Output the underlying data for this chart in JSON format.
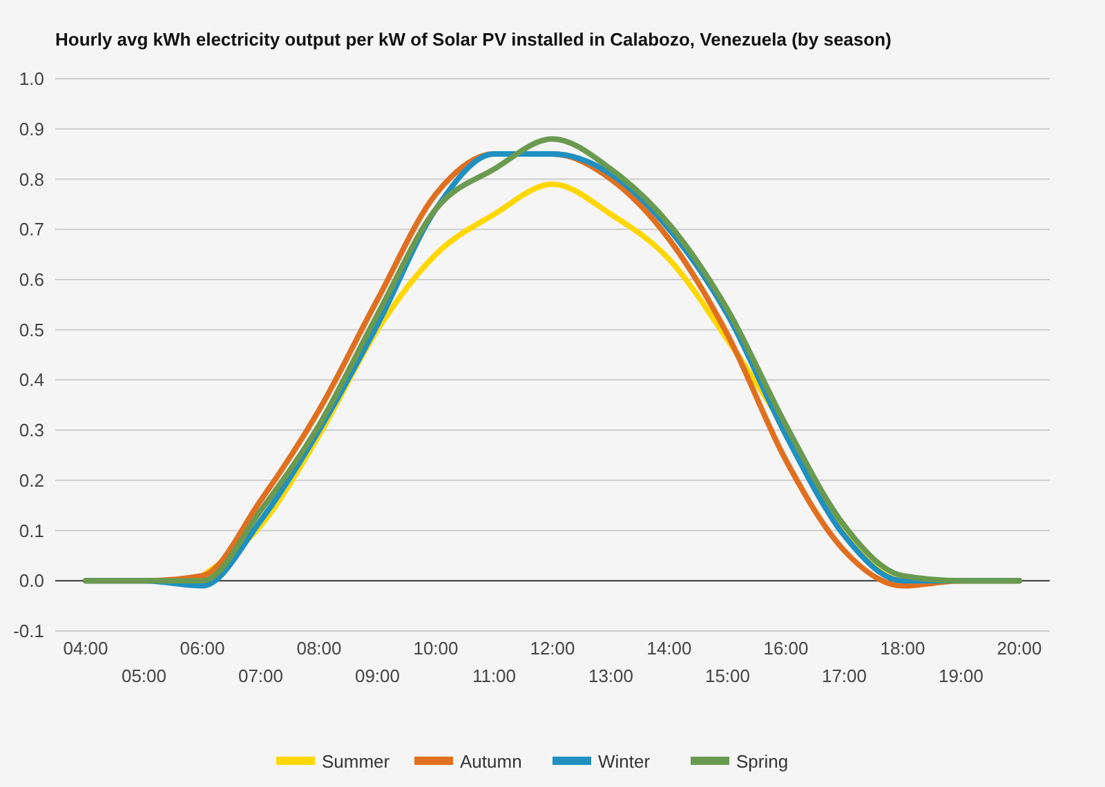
{
  "chart_data": {
    "type": "line",
    "title": "Hourly avg kWh electricity output per kW of Solar PV installed in Calabozo, Venezuela (by season)",
    "categories": [
      "04:00",
      "05:00",
      "06:00",
      "07:00",
      "08:00",
      "09:00",
      "10:00",
      "11:00",
      "12:00",
      "13:00",
      "14:00",
      "15:00",
      "16:00",
      "17:00",
      "18:00",
      "19:00",
      "20:00"
    ],
    "series": [
      {
        "name": "Summer",
        "color": "#ffd700",
        "values": [
          null,
          null,
          0.01,
          0.11,
          0.29,
          0.5,
          0.65,
          0.73,
          0.79,
          0.73,
          0.64,
          0.48,
          0.3,
          0.1,
          0,
          0,
          0
        ]
      },
      {
        "name": "Autumn",
        "color": "#e07020",
        "values": [
          0,
          0,
          0.01,
          0.16,
          0.34,
          0.56,
          0.77,
          0.85,
          0.85,
          0.8,
          0.68,
          0.49,
          0.24,
          0.06,
          -0.01,
          0,
          0
        ]
      },
      {
        "name": "Winter",
        "color": "#2090c0",
        "values": [
          0,
          0,
          -0.01,
          0.12,
          0.3,
          0.51,
          0.74,
          0.85,
          0.85,
          0.81,
          0.7,
          0.53,
          0.29,
          0.09,
          0,
          0,
          0
        ]
      },
      {
        "name": "Spring",
        "color": "#6a9a50",
        "values": [
          0,
          0,
          0,
          0.14,
          0.31,
          0.53,
          0.74,
          0.82,
          0.88,
          0.82,
          0.71,
          0.54,
          0.31,
          0.11,
          0.01,
          0,
          0
        ]
      }
    ],
    "ylim": [
      -0.1,
      1.0
    ],
    "yticks": [
      {
        "value": -0.1,
        "label": "-0.1"
      },
      {
        "value": 0,
        "label": "0.0"
      },
      {
        "value": 0.1,
        "label": "0.1"
      },
      {
        "value": 0.2,
        "label": "0.2"
      },
      {
        "value": 0.3,
        "label": "0.3"
      },
      {
        "value": 0.4,
        "label": "0.4"
      },
      {
        "value": 0.5,
        "label": "0.5"
      },
      {
        "value": 0.6,
        "label": "0.6"
      },
      {
        "value": 0.7,
        "label": "0.7"
      },
      {
        "value": 0.8,
        "label": "0.8"
      },
      {
        "value": 0.9,
        "label": "0.9"
      },
      {
        "value": 1,
        "label": "1.0"
      }
    ],
    "grid": "y",
    "legend": "bottom",
    "marker": "none",
    "line_style": "solid"
  }
}
